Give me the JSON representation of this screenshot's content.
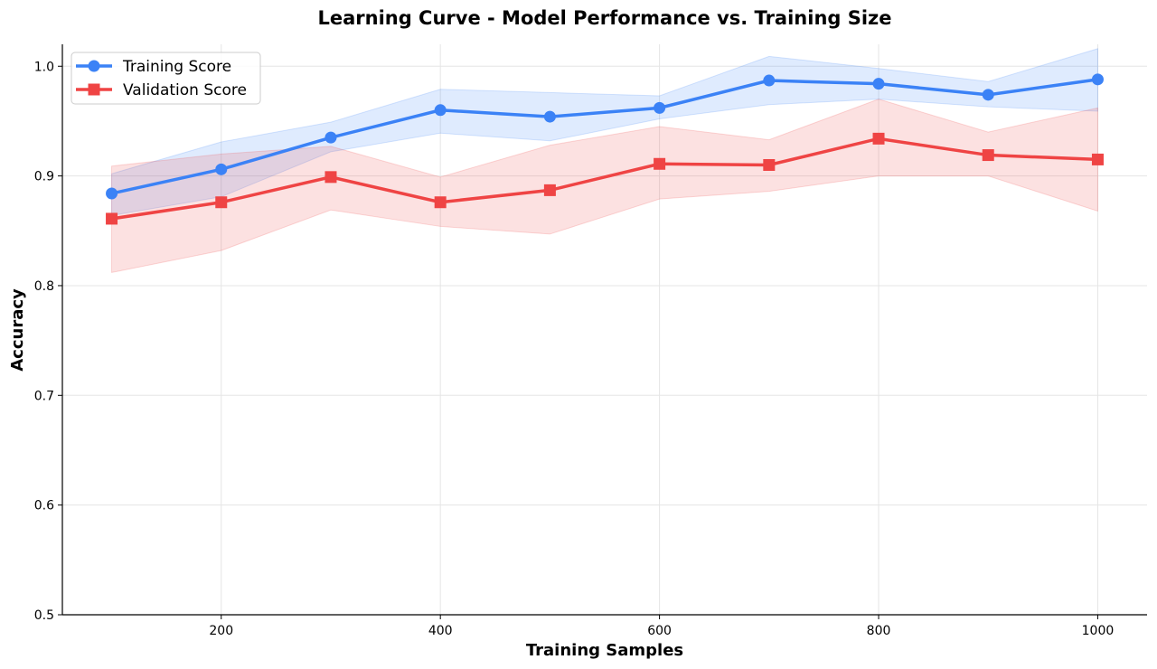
{
  "chart_data": {
    "type": "line",
    "title": "Learning Curve - Model Performance vs. Training Size",
    "xlabel": "Training Samples",
    "ylabel": "Accuracy",
    "xlim": [
      55,
      1045
    ],
    "ylim": [
      0.5,
      1.02
    ],
    "xticks": [
      200,
      400,
      600,
      800,
      1000
    ],
    "yticks": [
      0.5,
      0.6,
      0.7,
      0.8,
      0.9,
      1.0
    ],
    "xtick_labels": [
      "200",
      "400",
      "600",
      "800",
      "1000"
    ],
    "ytick_labels": [
      "0.5",
      "0.6",
      "0.7",
      "0.8",
      "0.9",
      "1.0"
    ],
    "grid": true,
    "legend_position": "top-left",
    "x": [
      100,
      200,
      300,
      400,
      500,
      600,
      700,
      800,
      900,
      1000
    ],
    "series": [
      {
        "name": "Training Score",
        "color": "#3b82f6",
        "marker": "circle",
        "values": [
          0.884,
          0.906,
          0.935,
          0.96,
          0.954,
          0.962,
          0.987,
          0.984,
          0.974,
          0.988
        ],
        "band_upper": [
          0.902,
          0.931,
          0.949,
          0.979,
          0.976,
          0.973,
          1.009,
          0.998,
          0.986,
          1.016
        ],
        "band_lower": [
          0.864,
          0.881,
          0.922,
          0.939,
          0.932,
          0.952,
          0.965,
          0.97,
          0.963,
          0.959
        ]
      },
      {
        "name": "Validation Score",
        "color": "#ef4444",
        "marker": "square",
        "values": [
          0.861,
          0.876,
          0.899,
          0.876,
          0.887,
          0.911,
          0.91,
          0.934,
          0.919,
          0.915
        ],
        "band_upper": [
          0.909,
          0.92,
          0.927,
          0.899,
          0.928,
          0.945,
          0.933,
          0.97,
          0.94,
          0.962
        ],
        "band_lower": [
          0.812,
          0.832,
          0.869,
          0.854,
          0.847,
          0.879,
          0.886,
          0.9,
          0.9,
          0.868
        ]
      }
    ]
  }
}
